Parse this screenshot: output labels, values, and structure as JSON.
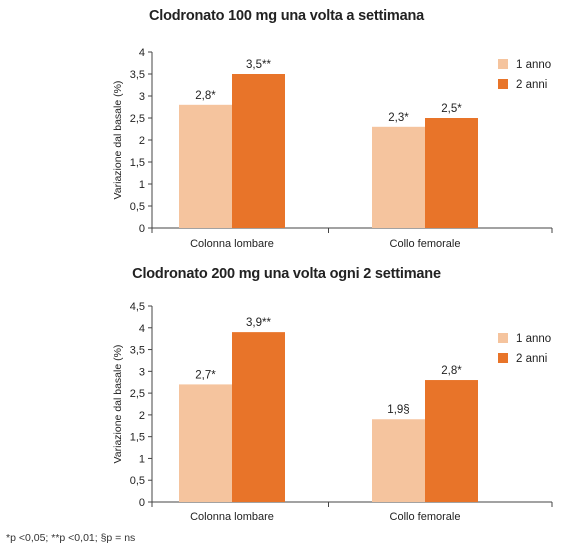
{
  "colors": {
    "year1": "#f5c49e",
    "year2": "#e87429",
    "axis": "#444444"
  },
  "footnote": "*p <0,05; **p <0,01; §p = ns",
  "chart_data": [
    {
      "type": "bar",
      "title": "Clodronato 100 mg una volta a settimana",
      "ylabel": "Variazione dal basale (%)",
      "ylim": [
        0,
        4
      ],
      "yticks": [
        "0",
        "0,5",
        "1",
        "1,5",
        "2",
        "2,5",
        "3",
        "3,5",
        "4"
      ],
      "categories": [
        "Colonna lombare",
        "Collo femorale"
      ],
      "legend_position": "top-right",
      "series": [
        {
          "name": "1 anno",
          "color": "#f5c49e",
          "values": [
            2.8,
            2.3
          ],
          "labels": [
            "2,8*",
            "2,3*"
          ]
        },
        {
          "name": "2 anni",
          "color": "#e87429",
          "values": [
            3.5,
            2.5
          ],
          "labels": [
            "3,5**",
            "2,5*"
          ]
        }
      ]
    },
    {
      "type": "bar",
      "title": "Clodronato 200 mg una volta ogni 2 settimane",
      "ylabel": "Variazione dal basale (%)",
      "ylim": [
        0,
        4.5
      ],
      "yticks": [
        "0",
        "0,5",
        "1",
        "1,5",
        "2",
        "2,5",
        "3",
        "3,5",
        "4",
        "4,5"
      ],
      "categories": [
        "Colonna lombare",
        "Collo femorale"
      ],
      "legend_position": "right",
      "series": [
        {
          "name": "1 anno",
          "color": "#f5c49e",
          "values": [
            2.7,
            1.9
          ],
          "labels": [
            "2,7*",
            "1,9§"
          ]
        },
        {
          "name": "2 anni",
          "color": "#e87429",
          "values": [
            3.9,
            2.8
          ],
          "labels": [
            "3,9**",
            "2,8*"
          ]
        }
      ]
    }
  ]
}
